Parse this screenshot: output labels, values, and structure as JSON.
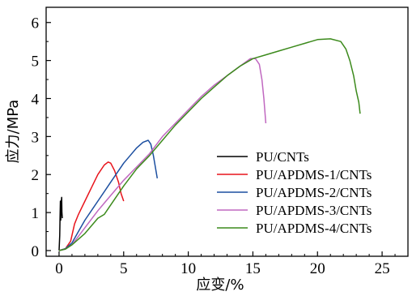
{
  "chart_data": {
    "type": "line",
    "xlabel": "应变/%",
    "ylabel": "应力/MPa",
    "xlim": [
      -1,
      27
    ],
    "ylim": [
      -0.15,
      6.4
    ],
    "xticks": [
      0,
      5,
      10,
      15,
      20,
      25
    ],
    "yticks": [
      0,
      1,
      2,
      3,
      4,
      5,
      6
    ],
    "grid": false,
    "legend_position": "bottom-right",
    "series": [
      {
        "name": "PU/CNTs",
        "color": "#000000",
        "x": [
          0.0,
          0.05,
          0.08,
          0.1,
          0.13,
          0.16,
          0.2,
          0.22,
          0.25
        ],
        "y": [
          0.0,
          0.4,
          0.9,
          1.3,
          0.8,
          1.2,
          1.4,
          1.0,
          0.85
        ]
      },
      {
        "name": "PU/APDMS-1/CNTs",
        "color": "#e8141c",
        "x": [
          0.0,
          0.5,
          0.9,
          1.2,
          1.5,
          2.0,
          2.5,
          3.0,
          3.5,
          3.8,
          4.0,
          4.3,
          4.6,
          4.8,
          5.0
        ],
        "y": [
          0.0,
          0.05,
          0.25,
          0.7,
          0.95,
          1.3,
          1.65,
          2.0,
          2.25,
          2.33,
          2.3,
          2.1,
          1.8,
          1.5,
          1.3
        ]
      },
      {
        "name": "PU/APDMS-2/CNTs",
        "color": "#1c4fa0",
        "x": [
          0.0,
          0.5,
          1.0,
          1.5,
          2.0,
          3.0,
          4.0,
          5.0,
          5.5,
          6.0,
          6.5,
          6.9,
          7.1,
          7.3,
          7.5,
          7.6
        ],
        "y": [
          0.0,
          0.05,
          0.2,
          0.5,
          0.8,
          1.3,
          1.8,
          2.3,
          2.5,
          2.7,
          2.85,
          2.9,
          2.8,
          2.5,
          2.1,
          1.9
        ]
      },
      {
        "name": "PU/APDMS-3/CNTs",
        "color": "#c068c0",
        "x": [
          0.0,
          0.5,
          1.0,
          2.0,
          3.0,
          4.0,
          5.0,
          6.0,
          7.0,
          8.0,
          9.0,
          10.0,
          11.0,
          12.0,
          13.0,
          14.0,
          14.8,
          15.2,
          15.5,
          15.7,
          15.85,
          16.0
        ],
        "y": [
          0.0,
          0.04,
          0.15,
          0.6,
          1.05,
          1.45,
          1.85,
          2.2,
          2.55,
          3.0,
          3.35,
          3.7,
          4.05,
          4.35,
          4.6,
          4.85,
          5.05,
          5.05,
          4.9,
          4.5,
          4.0,
          3.35
        ]
      },
      {
        "name": "PU/APDMS-4/CNTs",
        "color": "#3c8a1c",
        "x": [
          0.0,
          0.5,
          1.0,
          2.0,
          3.0,
          3.5,
          4.0,
          5.0,
          6.0,
          7.0,
          8.0,
          9.0,
          10.0,
          11.0,
          12.0,
          13.0,
          14.0,
          15.0,
          16.0,
          17.0,
          18.0,
          19.0,
          20.0,
          21.0,
          21.8,
          22.2,
          22.5,
          22.8,
          23.0,
          23.2,
          23.3
        ],
        "y": [
          0.0,
          0.04,
          0.15,
          0.45,
          0.85,
          0.95,
          1.2,
          1.7,
          2.15,
          2.5,
          2.9,
          3.3,
          3.65,
          4.0,
          4.3,
          4.6,
          4.85,
          5.05,
          5.15,
          5.25,
          5.35,
          5.45,
          5.55,
          5.57,
          5.5,
          5.3,
          5.0,
          4.6,
          4.2,
          3.9,
          3.6
        ]
      }
    ]
  }
}
